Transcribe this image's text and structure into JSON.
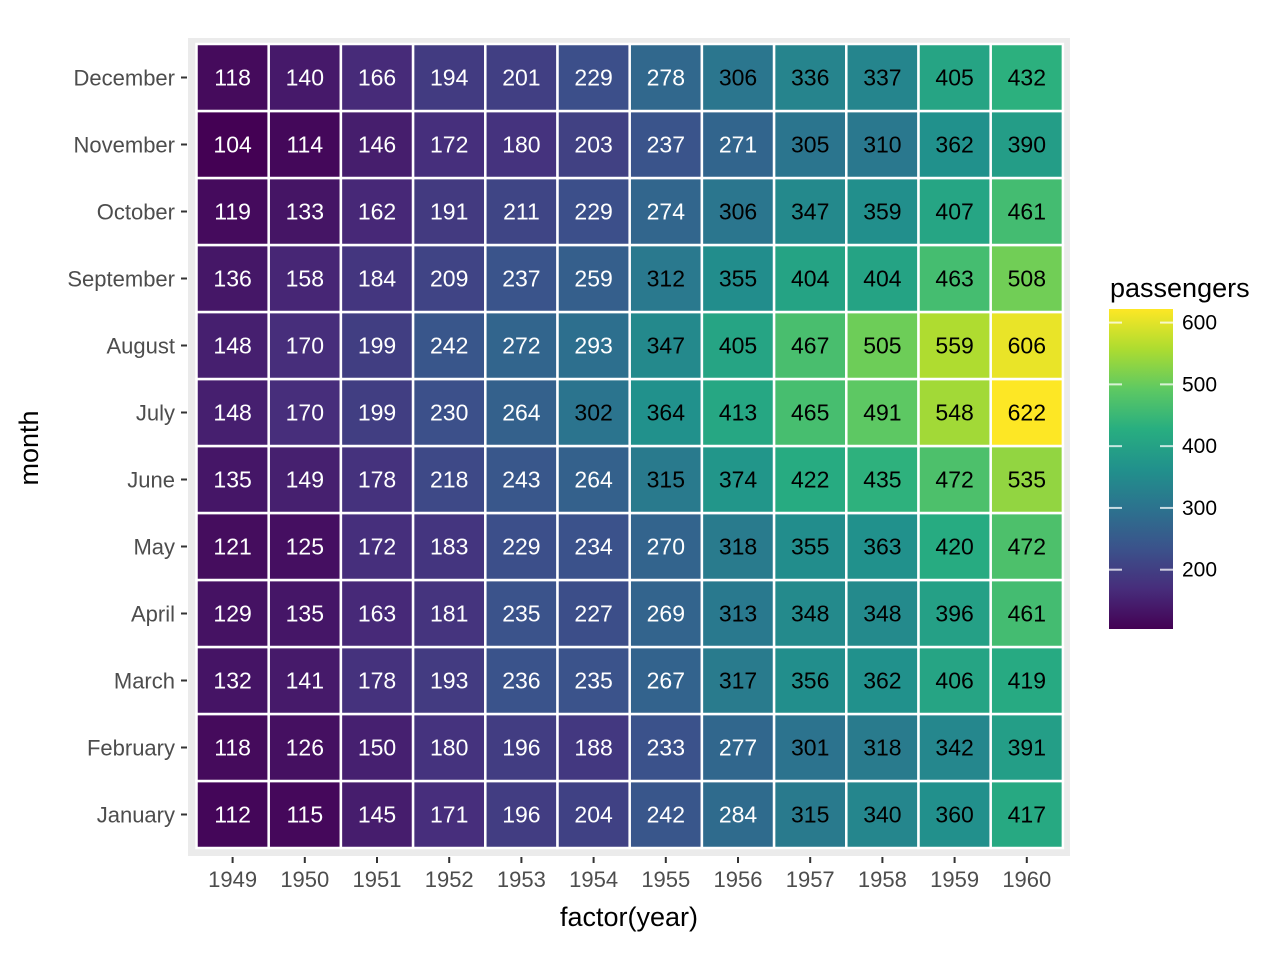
{
  "chart_data": {
    "type": "heatmap",
    "xlabel": "factor(year)",
    "ylabel": "month",
    "x": [
      "1949",
      "1950",
      "1951",
      "1952",
      "1953",
      "1954",
      "1955",
      "1956",
      "1957",
      "1958",
      "1959",
      "1960"
    ],
    "y": [
      "January",
      "February",
      "March",
      "April",
      "May",
      "June",
      "July",
      "August",
      "September",
      "October",
      "November",
      "December"
    ],
    "values": [
      [
        112,
        115,
        145,
        171,
        196,
        204,
        242,
        284,
        315,
        340,
        360,
        417
      ],
      [
        118,
        126,
        150,
        180,
        196,
        188,
        233,
        277,
        301,
        318,
        342,
        391
      ],
      [
        132,
        141,
        178,
        193,
        236,
        235,
        267,
        317,
        356,
        362,
        406,
        419
      ],
      [
        129,
        135,
        163,
        181,
        235,
        227,
        269,
        313,
        348,
        348,
        396,
        461
      ],
      [
        121,
        125,
        172,
        183,
        229,
        234,
        270,
        318,
        355,
        363,
        420,
        472
      ],
      [
        135,
        149,
        178,
        218,
        243,
        264,
        315,
        374,
        422,
        435,
        472,
        535
      ],
      [
        148,
        170,
        199,
        230,
        264,
        302,
        364,
        413,
        465,
        491,
        548,
        622
      ],
      [
        148,
        170,
        199,
        242,
        272,
        293,
        347,
        405,
        467,
        505,
        559,
        606
      ],
      [
        136,
        158,
        184,
        209,
        237,
        259,
        312,
        355,
        404,
        404,
        463,
        508
      ],
      [
        119,
        133,
        162,
        191,
        211,
        229,
        274,
        306,
        347,
        359,
        407,
        461
      ],
      [
        104,
        114,
        146,
        172,
        180,
        203,
        237,
        271,
        305,
        310,
        362,
        390
      ],
      [
        118,
        140,
        166,
        194,
        201,
        229,
        278,
        306,
        336,
        337,
        405,
        432
      ]
    ],
    "legend": {
      "title": "passengers",
      "ticks": [
        200,
        300,
        400,
        500,
        600
      ],
      "range": [
        104,
        622
      ],
      "placement": "right"
    },
    "colormap": "viridis",
    "colors": {
      "panel_background": "#ebebeb",
      "cell_border": "#ffffff",
      "label_dark": "#000000",
      "label_light": "#ffffff"
    }
  }
}
